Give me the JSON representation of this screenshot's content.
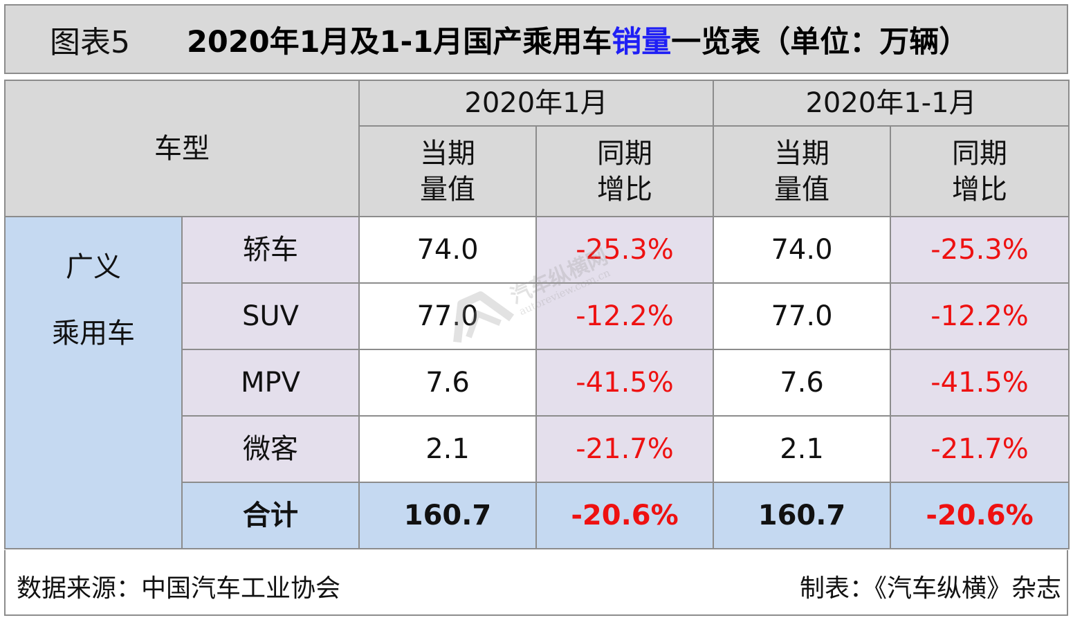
{
  "title": {
    "prefix": "图表5",
    "main_before": "2020年1月及1-1月国产乘用车",
    "main_highlight": "销量",
    "main_after": "一览表（单位：万辆）"
  },
  "table": {
    "header": {
      "vehicle_type": "车型",
      "period1": "2020年1月",
      "period2": "2020年1-1月",
      "current_value": [
        "当期",
        "量值"
      ],
      "yoy_change": [
        "同期",
        "增比"
      ]
    },
    "category": [
      "广义",
      "乘用车"
    ],
    "rows": [
      {
        "type": "轿车",
        "p1_value": "74.0",
        "p1_yoy": "-25.3%",
        "p2_value": "74.0",
        "p2_yoy": "-25.3%"
      },
      {
        "type": "SUV",
        "p1_value": "77.0",
        "p1_yoy": "-12.2%",
        "p2_value": "77.0",
        "p2_yoy": "-12.2%"
      },
      {
        "type": "MPV",
        "p1_value": "7.6",
        "p1_yoy": "-41.5%",
        "p2_value": "7.6",
        "p2_yoy": "-41.5%"
      },
      {
        "type": "微客",
        "p1_value": "2.1",
        "p1_yoy": "-21.7%",
        "p2_value": "2.1",
        "p2_yoy": "-21.7%"
      }
    ],
    "total": {
      "label": "合计",
      "p1_value": "160.7",
      "p1_yoy": "-20.6%",
      "p2_value": "160.7",
      "p2_yoy": "-20.6%"
    }
  },
  "footer": {
    "source": "数据来源：中国汽车工业协会",
    "maker": "制表：《汽车纵横》杂志"
  },
  "watermark": {
    "name": "汽车纵横网",
    "url": "autoreview.com.cn"
  },
  "colors": {
    "header_gray": "#d9d9d9",
    "category_blue": "#c5d9f1",
    "lavender": "#e4dfec",
    "negative_red": "#ee1111",
    "highlight_blue": "#1f1ff5"
  }
}
